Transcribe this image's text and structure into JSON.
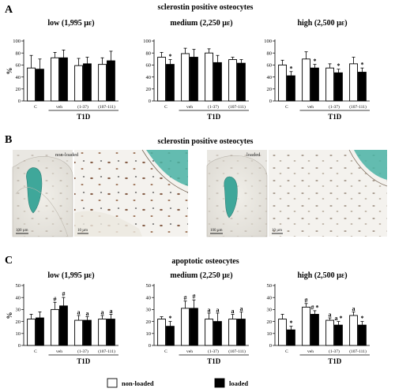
{
  "figure": {
    "panels": [
      {
        "letter": "A",
        "title": "sclerostin positive osteocytes"
      },
      {
        "letter": "B",
        "title": "sclerostin positive osteocytes"
      },
      {
        "letter": "C",
        "title": "apoptotic osteocytes"
      }
    ],
    "micrographs": {
      "left_label": "non-loaded",
      "right_label": "loaded",
      "scale_bars": [
        "100 µm",
        "10 µm",
        "100 µm",
        "10 µm"
      ]
    },
    "legend": {
      "non_loaded": "non-loaded",
      "loaded": "loaded"
    }
  },
  "chart_data": [
    {
      "type": "bar",
      "panel": "A",
      "title": "low (1,995 µε)",
      "ylabel": "%",
      "ylim": [
        0,
        100
      ],
      "yticks": [
        0,
        20,
        40,
        60,
        80,
        100
      ],
      "categories": [
        "C",
        "veh",
        "(1-37)",
        "(107-111)"
      ],
      "group_label": "T1D",
      "grid": false,
      "series": [
        {
          "name": "non-loaded",
          "values": [
            55,
            72,
            59,
            61
          ],
          "errors": [
            21,
            9,
            12,
            11
          ],
          "marks": [
            "",
            "",
            "",
            ""
          ]
        },
        {
          "name": "loaded",
          "values": [
            53,
            72,
            62,
            67
          ],
          "errors": [
            17,
            13,
            11,
            16
          ],
          "marks": [
            "",
            "",
            "",
            ""
          ]
        }
      ]
    },
    {
      "type": "bar",
      "panel": "A",
      "title": "medium (2,250 µε)",
      "ylabel": "%",
      "ylim": [
        0,
        100
      ],
      "yticks": [
        0,
        20,
        40,
        60,
        80,
        100
      ],
      "categories": [
        "C",
        "veh",
        "(1-37)",
        "(107-111)"
      ],
      "group_label": "T1D",
      "grid": false,
      "series": [
        {
          "name": "non-loaded",
          "values": [
            73,
            79,
            80,
            69
          ],
          "errors": [
            8,
            9,
            7,
            4
          ],
          "marks": [
            "",
            "",
            "",
            ""
          ]
        },
        {
          "name": "loaded",
          "values": [
            61,
            73,
            64,
            63
          ],
          "errors": [
            8,
            13,
            12,
            6
          ],
          "marks": [
            "*",
            "",
            "",
            ""
          ]
        }
      ]
    },
    {
      "type": "bar",
      "panel": "A",
      "title": "high (2,500 µε)",
      "ylabel": "%",
      "ylim": [
        0,
        100
      ],
      "yticks": [
        0,
        20,
        40,
        60,
        80,
        100
      ],
      "categories": [
        "C",
        "veh",
        "(1-37)",
        "(107-111)"
      ],
      "group_label": "T1D",
      "grid": false,
      "series": [
        {
          "name": "non-loaded",
          "values": [
            60,
            70,
            55,
            62
          ],
          "errors": [
            8,
            12,
            7,
            11
          ],
          "marks": [
            "",
            "",
            "",
            ""
          ]
        },
        {
          "name": "loaded",
          "values": [
            42,
            55,
            47,
            48
          ],
          "errors": [
            7,
            6,
            6,
            7
          ],
          "marks": [
            "*",
            "*",
            "*",
            "*"
          ]
        }
      ]
    },
    {
      "type": "bar",
      "panel": "C",
      "title": "low (1,995 µε)",
      "ylabel": "%",
      "ylim": [
        0,
        50
      ],
      "yticks": [
        0,
        10,
        20,
        30,
        40,
        50
      ],
      "categories": [
        "C",
        "veh",
        "(1-37)",
        "(107-111)"
      ],
      "group_label": "T1D",
      "grid": false,
      "series": [
        {
          "name": "non-loaded",
          "values": [
            22,
            30,
            21,
            22
          ],
          "errors": [
            4,
            6,
            4,
            3
          ],
          "marks": [
            "",
            "#",
            "a",
            "a"
          ]
        },
        {
          "name": "loaded",
          "values": [
            23,
            33,
            21,
            22
          ],
          "errors": [
            5,
            7,
            3,
            4
          ],
          "marks": [
            "",
            "#",
            "a",
            "a"
          ]
        }
      ]
    },
    {
      "type": "bar",
      "panel": "C",
      "title": "medium (2,250 µε)",
      "ylabel": "%",
      "ylim": [
        0,
        50
      ],
      "yticks": [
        0,
        10,
        20,
        30,
        40,
        50
      ],
      "categories": [
        "C",
        "veh",
        "(1-37)",
        "(107-111)"
      ],
      "group_label": "T1D",
      "grid": false,
      "series": [
        {
          "name": "non-loaded",
          "values": [
            22,
            31,
            22,
            22
          ],
          "errors": [
            2,
            6,
            5,
            4
          ],
          "marks": [
            "",
            "#",
            "a",
            "a"
          ]
        },
        {
          "name": "loaded",
          "values": [
            16,
            31,
            20,
            22
          ],
          "errors": [
            4,
            7,
            7,
            6
          ],
          "marks": [
            "*",
            "#",
            "a",
            "a"
          ]
        }
      ]
    },
    {
      "type": "bar",
      "panel": "C",
      "title": "high (2,500 µε)",
      "ylabel": "%",
      "ylim": [
        0,
        50
      ],
      "yticks": [
        0,
        10,
        20,
        30,
        40,
        50
      ],
      "categories": [
        "C",
        "veh",
        "(1-37)",
        "(107-111)"
      ],
      "group_label": "T1D",
      "grid": false,
      "series": [
        {
          "name": "non-loaded",
          "values": [
            22,
            32,
            21,
            25
          ],
          "errors": [
            4,
            3,
            2,
            3
          ],
          "marks": [
            "",
            "#",
            "a",
            "a"
          ]
        },
        {
          "name": "loaded",
          "values": [
            13,
            26,
            17,
            17
          ],
          "errors": [
            3,
            3,
            3,
            3
          ],
          "marks": [
            "*",
            "# *",
            "a *",
            "*"
          ]
        }
      ]
    }
  ]
}
